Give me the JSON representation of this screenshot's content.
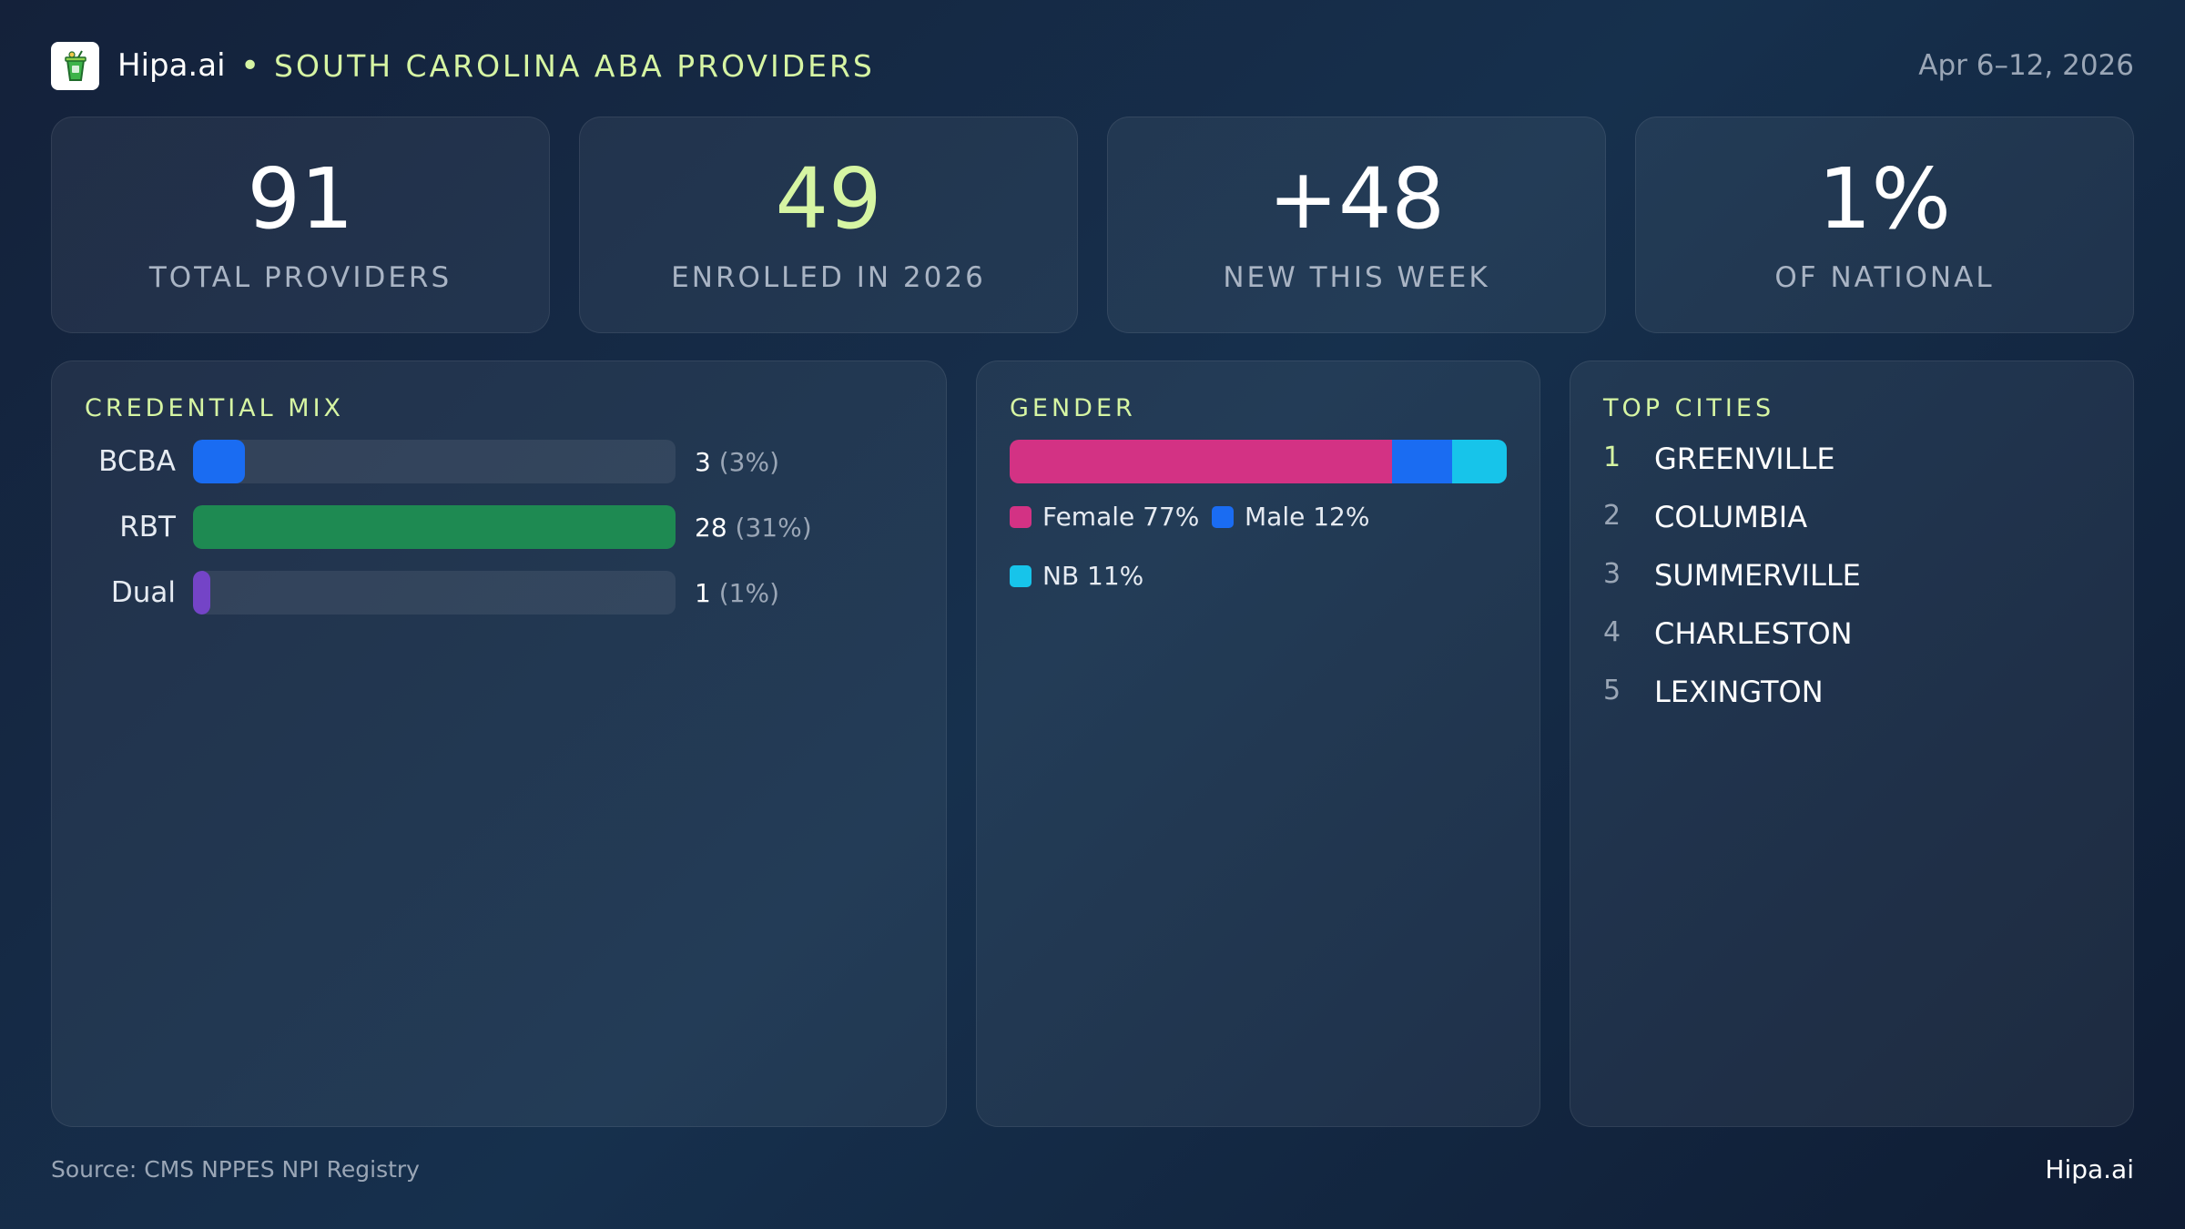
{
  "header": {
    "brand": "Hipa.ai",
    "separator": "•",
    "title": "SOUTH CAROLINA ABA PROVIDERS",
    "date_range": "Apr 6–12, 2026",
    "logo_icon": "cup-icon"
  },
  "kpis": [
    {
      "value": "91",
      "label": "TOTAL PROVIDERS"
    },
    {
      "value": "49",
      "label": "ENROLLED IN 2026"
    },
    {
      "value": "+48",
      "label": "NEW THIS WEEK"
    },
    {
      "value": "1%",
      "label": "OF NATIONAL"
    }
  ],
  "credential_mix": {
    "title": "CREDENTIAL MIX",
    "rows": [
      {
        "label": "BCBA",
        "count": "3",
        "pct": "(3%)",
        "color": "#1a6cf2",
        "fill": 0.107
      },
      {
        "label": "RBT",
        "count": "28",
        "pct": "(31%)",
        "color": "#1e8a52",
        "fill": 1.0
      },
      {
        "label": "Dual",
        "count": "1",
        "pct": "(1%)",
        "color": "#7444c7",
        "fill": 0.036
      }
    ]
  },
  "gender": {
    "title": "GENDER",
    "segments": [
      {
        "label": "Female 77%",
        "share": 77,
        "color": "#d33284"
      },
      {
        "label": "Male 12%",
        "share": 12,
        "color": "#1a6cf2"
      },
      {
        "label": "NB 11%",
        "share": 11,
        "color": "#17c4ea"
      }
    ]
  },
  "top_cities": {
    "title": "TOP CITIES",
    "items": [
      {
        "rank": "1",
        "name": "GREENVILLE"
      },
      {
        "rank": "2",
        "name": "COLUMBIA"
      },
      {
        "rank": "3",
        "name": "SUMMERVILLE"
      },
      {
        "rank": "4",
        "name": "CHARLESTON"
      },
      {
        "rank": "5",
        "name": "LEXINGTON"
      }
    ]
  },
  "footer": {
    "source": "Source: CMS NPPES NPI Registry",
    "brand": "Hipa.ai"
  }
}
